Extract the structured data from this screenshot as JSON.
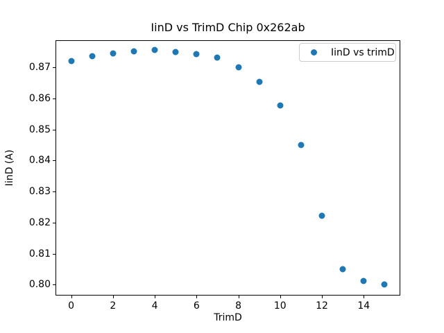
{
  "chart_data": {
    "type": "scatter",
    "title": "IinD vs TrimD Chip 0x262ab",
    "xlabel": "TrimD",
    "ylabel": "IinD (A)",
    "legend": [
      "IinD vs trimD"
    ],
    "legend_position": "upper right",
    "grid": false,
    "marker_color": "#1f77b4",
    "background_color": "#ffffff",
    "x": [
      0,
      1,
      2,
      3,
      4,
      5,
      6,
      7,
      8,
      9,
      10,
      11,
      12,
      13,
      14,
      15
    ],
    "series": [
      {
        "name": "IinD vs trimD",
        "values": [
          0.8722,
          0.8737,
          0.8745,
          0.8752,
          0.8756,
          0.875,
          0.8744,
          0.8733,
          0.8701,
          0.8653,
          0.8578,
          0.845,
          0.8222,
          0.805,
          0.8012,
          0.8
        ]
      }
    ],
    "xlim": [
      -0.75,
      15.75
    ],
    "ylim": [
      0.7965,
      0.8788
    ],
    "xticks": [
      0,
      2,
      4,
      6,
      8,
      10,
      12,
      14
    ],
    "yticks": [
      0.8,
      0.81,
      0.82,
      0.83,
      0.84,
      0.85,
      0.86,
      0.87
    ],
    "ytick_decimals": 2
  }
}
